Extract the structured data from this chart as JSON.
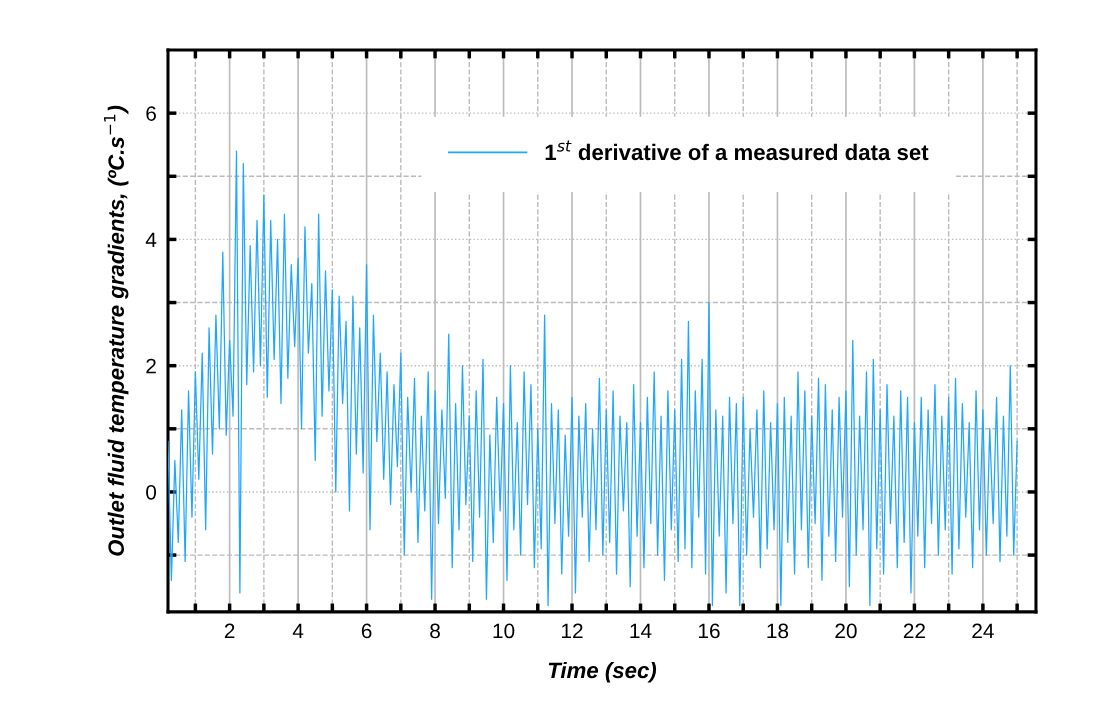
{
  "chart_data": {
    "type": "line",
    "xlabel": "Time (sec)",
    "ylabel": "Outlet fluid temperature gradients, (ºC.s$^{−1}$)",
    "xlim": [
      0.2,
      25.55
    ],
    "ylim": [
      -1.9,
      7
    ],
    "xticks": [
      {
        "value": 1,
        "label": null
      },
      2,
      {
        "value": 3,
        "label": null
      },
      4,
      {
        "value": 5,
        "label": null
      },
      6,
      {
        "value": 7,
        "label": null
      },
      8,
      {
        "value": 9,
        "label": null
      },
      10,
      {
        "value": 11,
        "label": null
      },
      12,
      {
        "value": 13,
        "label": null
      },
      14,
      {
        "value": 15,
        "label": null
      },
      16,
      {
        "value": 17,
        "label": null
      },
      18,
      {
        "value": 19,
        "label": null
      },
      20,
      {
        "value": 21,
        "label": null
      },
      22,
      {
        "value": 23,
        "label": null
      },
      24,
      {
        "value": 25,
        "label": null
      }
    ],
    "yticks": [
      {
        "value": -1,
        "label": null
      },
      0,
      {
        "value": 1,
        "label": null
      },
      2,
      {
        "value": 3,
        "label": null
      },
      4,
      {
        "value": 5,
        "label": null
      },
      6
    ],
    "grid": true,
    "legend": "top right",
    "series": [
      {
        "name": "1$^{st}$ derivative of a measured data set",
        "color": "#1ea7fd",
        "x": [
          0.2,
          0.3,
          0.4,
          0.5,
          0.6,
          0.7,
          0.8,
          0.9,
          1.0,
          1.1,
          1.2,
          1.3,
          1.4,
          1.5,
          1.6,
          1.7,
          1.8,
          1.9,
          2.0,
          2.1,
          2.2,
          2.3,
          2.4,
          2.5,
          2.6,
          2.7,
          2.8,
          2.9,
          3.0,
          3.1,
          3.2,
          3.3,
          3.4,
          3.5,
          3.6,
          3.7,
          3.8,
          3.9,
          4.0,
          4.1,
          4.2,
          4.3,
          4.4,
          4.5,
          4.6,
          4.7,
          4.8,
          4.9,
          5.0,
          5.1,
          5.2,
          5.3,
          5.4,
          5.5,
          5.6,
          5.7,
          5.8,
          5.9,
          6.0,
          6.1,
          6.2,
          6.3,
          6.4,
          6.5,
          6.6,
          6.7,
          6.8,
          6.9,
          7.0,
          7.1,
          7.2,
          7.3,
          7.4,
          7.5,
          7.6,
          7.7,
          7.8,
          7.9,
          8.0,
          8.1,
          8.2,
          8.3,
          8.4,
          8.5,
          8.6,
          8.7,
          8.8,
          8.9,
          9.0,
          9.1,
          9.2,
          9.3,
          9.4,
          9.5,
          9.6,
          9.7,
          9.8,
          9.9,
          10.0,
          10.1,
          10.2,
          10.3,
          10.4,
          10.5,
          10.6,
          10.7,
          10.8,
          10.9,
          11.0,
          11.1,
          11.2,
          11.3,
          11.4,
          11.5,
          11.6,
          11.7,
          11.8,
          11.9,
          12.0,
          12.1,
          12.2,
          12.3,
          12.4,
          12.5,
          12.6,
          12.7,
          12.8,
          12.9,
          13.0,
          13.1,
          13.2,
          13.3,
          13.4,
          13.5,
          13.6,
          13.7,
          13.8,
          13.9,
          14.0,
          14.1,
          14.2,
          14.3,
          14.4,
          14.5,
          14.6,
          14.7,
          14.8,
          14.9,
          15.0,
          15.1,
          15.2,
          15.3,
          15.4,
          15.5,
          15.6,
          15.7,
          15.8,
          15.9,
          16.0,
          16.1,
          16.2,
          16.3,
          16.4,
          16.5,
          16.6,
          16.7,
          16.8,
          16.9,
          17.0,
          17.1,
          17.2,
          17.3,
          17.4,
          17.5,
          17.6,
          17.7,
          17.8,
          17.9,
          18.0,
          18.1,
          18.2,
          18.3,
          18.4,
          18.5,
          18.6,
          18.7,
          18.8,
          18.9,
          19.0,
          19.1,
          19.2,
          19.3,
          19.4,
          19.5,
          19.6,
          19.7,
          19.8,
          19.9,
          20.0,
          20.1,
          20.2,
          20.3,
          20.4,
          20.5,
          20.6,
          20.7,
          20.8,
          20.9,
          21.0,
          21.1,
          21.2,
          21.3,
          21.4,
          21.5,
          21.6,
          21.7,
          21.8,
          21.9,
          22.0,
          22.1,
          22.2,
          22.3,
          22.4,
          22.5,
          22.6,
          22.7,
          22.8,
          22.9,
          23.0,
          23.1,
          23.2,
          23.3,
          23.4,
          23.5,
          23.6,
          23.7,
          23.8,
          23.9,
          24.0,
          24.1,
          24.2,
          24.3,
          24.4,
          24.5,
          24.6,
          24.7,
          24.8,
          24.9,
          25.0
        ],
        "values": [
          0.8,
          -1.4,
          0.5,
          -0.8,
          1.3,
          -1.1,
          1.6,
          -0.4,
          1.9,
          0.2,
          2.2,
          -0.6,
          2.6,
          0.6,
          2.8,
          1.0,
          3.8,
          0.9,
          2.4,
          1.2,
          5.4,
          -1.6,
          5.2,
          1.7,
          3.9,
          1.9,
          4.3,
          2.0,
          4.7,
          1.5,
          4.3,
          2.1,
          4.0,
          1.4,
          4.4,
          1.8,
          3.6,
          2.3,
          3.7,
          1.0,
          4.2,
          2.2,
          3.3,
          0.5,
          4.4,
          1.2,
          3.5,
          1.6,
          3.2,
          0.0,
          3.1,
          1.4,
          2.7,
          -0.3,
          3.1,
          0.6,
          2.6,
          0.3,
          3.6,
          -0.6,
          2.8,
          0.8,
          2.2,
          0.2,
          1.9,
          -0.2,
          1.7,
          0.4,
          2.2,
          -1.0,
          1.5,
          0.0,
          1.8,
          -0.8,
          1.2,
          -0.3,
          1.9,
          -1.7,
          1.6,
          -0.5,
          1.3,
          -0.1,
          2.5,
          -1.2,
          1.4,
          -0.6,
          2.0,
          -0.2,
          1.2,
          -1.1,
          1.6,
          -0.4,
          2.1,
          -1.7,
          0.9,
          -0.8,
          1.5,
          -0.3,
          1.4,
          -1.4,
          2.0,
          -0.6,
          1.1,
          -1.0,
          1.9,
          -0.2,
          1.7,
          -1.2,
          1.0,
          -0.9,
          2.8,
          -1.8,
          1.4,
          -0.5,
          1.3,
          -1.3,
          0.9,
          -0.7,
          1.5,
          -1.6,
          1.2,
          -0.4,
          1.4,
          -1.1,
          1.0,
          -0.6,
          1.8,
          -1.0,
          1.3,
          -0.8,
          1.6,
          -1.3,
          1.2,
          -0.3,
          1.1,
          -1.5,
          1.7,
          -0.7,
          1.1,
          -1.2,
          1.5,
          -0.5,
          1.9,
          -1.0,
          1.2,
          -1.4,
          1.6,
          -0.6,
          1.3,
          -1.1,
          2.1,
          -0.9,
          2.7,
          -1.2,
          1.6,
          -0.4,
          2.1,
          -1.3,
          3.0,
          -1.8,
          1.3,
          -0.7,
          1.2,
          -1.6,
          1.5,
          -0.5,
          1.4,
          -1.8,
          1.5,
          -1.0,
          1.0,
          -0.4,
          1.3,
          -1.2,
          1.6,
          -0.9,
          1.1,
          -0.6,
          1.4,
          -1.8,
          1.5,
          -0.8,
          1.2,
          -1.3,
          1.9,
          -0.6,
          1.6,
          -1.2,
          1.2,
          -0.5,
          1.8,
          -1.4,
          1.7,
          -0.7,
          1.3,
          -1.1,
          1.5,
          -0.4,
          1.6,
          -1.5,
          2.4,
          -1.0,
          1.2,
          -0.6,
          1.9,
          -1.8,
          2.1,
          -0.9,
          1.3,
          -1.3,
          1.7,
          -0.5,
          1.2,
          -1.2,
          1.6,
          -0.8,
          1.5,
          -1.6,
          1.1,
          -0.7,
          1.5,
          -1.2,
          1.3,
          -0.5,
          1.7,
          -1.0,
          1.2,
          -0.6,
          1.5,
          -1.3,
          1.8,
          -0.9,
          1.4,
          -0.4,
          1.1,
          -1.2,
          1.6,
          -0.6,
          1.3,
          -1.0,
          1.0,
          -0.5,
          1.5,
          -1.1,
          1.2,
          -0.7,
          2.0,
          -1.0,
          0.8
        ]
      }
    ]
  }
}
